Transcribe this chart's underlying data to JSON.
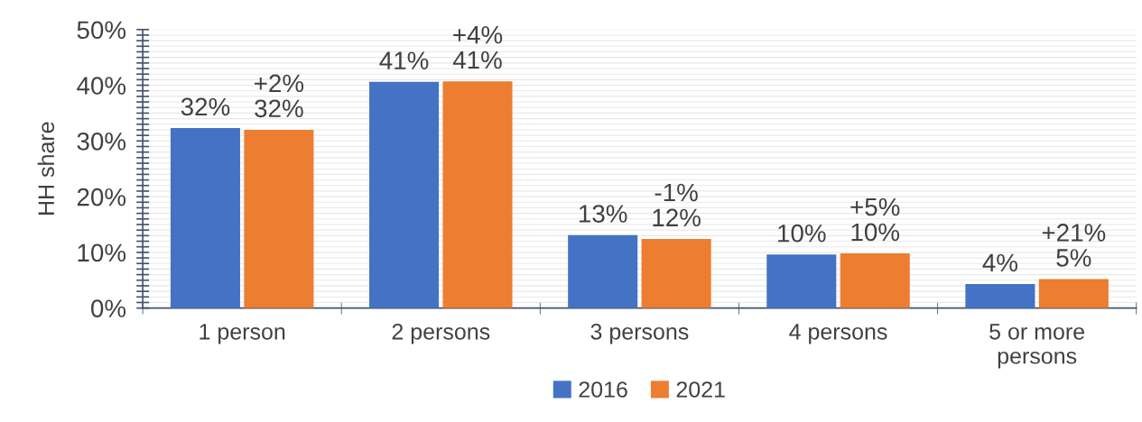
{
  "chart_data": {
    "type": "bar",
    "ylabel": "HH share",
    "categories": [
      "1 person",
      "2 persons",
      "3 persons",
      "4 persons",
      "5 or more\npersons"
    ],
    "series": [
      {
        "name": "2016",
        "color": "#4472c4",
        "values": [
          32.3,
          40.6,
          13.1,
          9.6,
          4.3
        ],
        "value_labels": [
          "32%",
          "41%",
          "13%",
          "10%",
          "4%"
        ]
      },
      {
        "name": "2021",
        "color": "#ed7d31",
        "values": [
          32.0,
          40.7,
          12.4,
          9.8,
          5.2
        ],
        "value_labels": [
          "+2%\n32%",
          "+4%\n41%",
          "-1%\n12%",
          "+5%\n10%",
          "+21%\n5%"
        ]
      }
    ],
    "ylim": [
      0,
      50
    ],
    "yticks": [
      {
        "value": 0,
        "label": "0%"
      },
      {
        "value": 1,
        "label": null
      },
      {
        "value": 2,
        "label": null
      },
      {
        "value": 3,
        "label": null
      },
      {
        "value": 4,
        "label": null
      },
      {
        "value": 5,
        "label": null
      },
      {
        "value": 6,
        "label": null
      },
      {
        "value": 7,
        "label": null
      },
      {
        "value": 8,
        "label": null
      },
      {
        "value": 9,
        "label": null
      },
      {
        "value": 10,
        "label": "10%"
      },
      {
        "value": 11,
        "label": null
      },
      {
        "value": 12,
        "label": null
      },
      {
        "value": 13,
        "label": null
      },
      {
        "value": 14,
        "label": null
      },
      {
        "value": 15,
        "label": null
      },
      {
        "value": 16,
        "label": null
      },
      {
        "value": 17,
        "label": null
      },
      {
        "value": 18,
        "label": null
      },
      {
        "value": 19,
        "label": null
      },
      {
        "value": 20,
        "label": "20%"
      },
      {
        "value": 21,
        "label": null
      },
      {
        "value": 22,
        "label": null
      },
      {
        "value": 23,
        "label": null
      },
      {
        "value": 24,
        "label": null
      },
      {
        "value": 25,
        "label": null
      },
      {
        "value": 26,
        "label": null
      },
      {
        "value": 27,
        "label": null
      },
      {
        "value": 28,
        "label": null
      },
      {
        "value": 29,
        "label": null
      },
      {
        "value": 30,
        "label": "30%"
      },
      {
        "value": 31,
        "label": null
      },
      {
        "value": 32,
        "label": null
      },
      {
        "value": 33,
        "label": null
      },
      {
        "value": 34,
        "label": null
      },
      {
        "value": 35,
        "label": null
      },
      {
        "value": 36,
        "label": null
      },
      {
        "value": 37,
        "label": null
      },
      {
        "value": 38,
        "label": null
      },
      {
        "value": 39,
        "label": null
      },
      {
        "value": 40,
        "label": "40%"
      },
      {
        "value": 41,
        "label": null
      },
      {
        "value": 42,
        "label": null
      },
      {
        "value": 43,
        "label": null
      },
      {
        "value": 44,
        "label": null
      },
      {
        "value": 45,
        "label": null
      },
      {
        "value": 46,
        "label": null
      },
      {
        "value": 47,
        "label": null
      },
      {
        "value": 48,
        "label": null
      },
      {
        "value": 49,
        "label": null
      },
      {
        "value": 50,
        "label": "50%"
      }
    ],
    "grid": "y",
    "legend": "bottom"
  }
}
